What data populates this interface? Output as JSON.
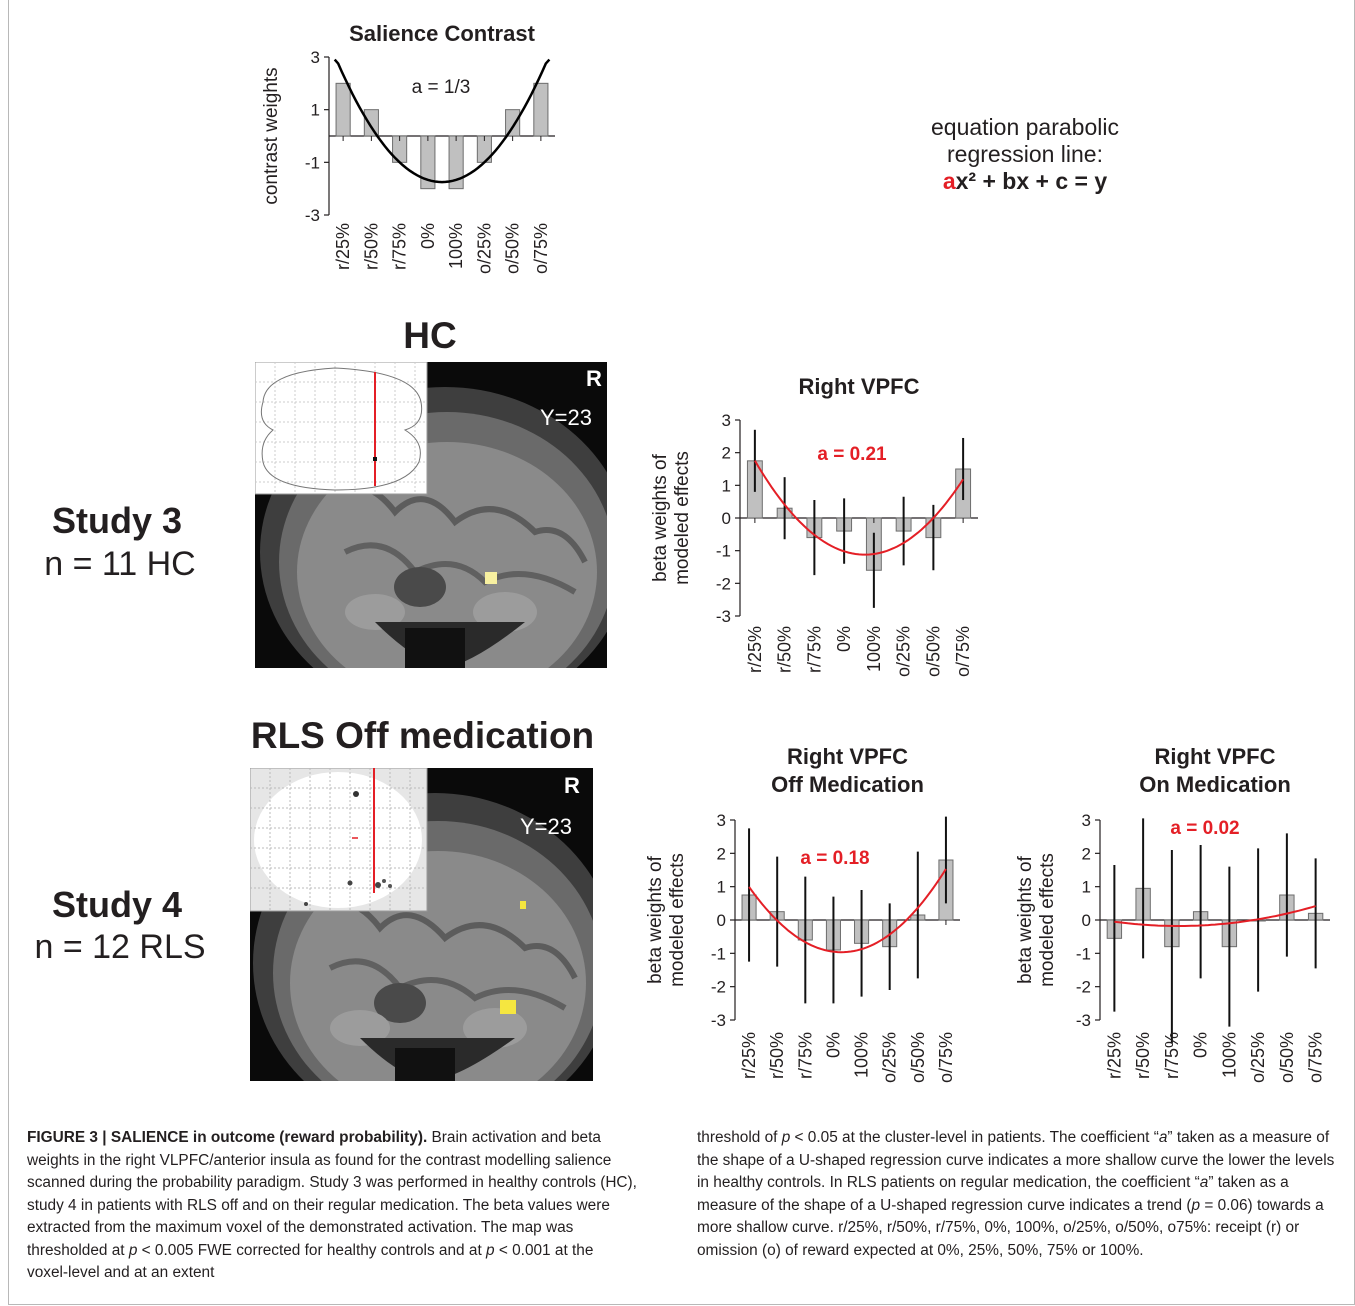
{
  "equation": {
    "line1": "equation parabolic",
    "line2": "regression line:",
    "a": "a",
    "rest": "x² + bx + c = y"
  },
  "studies": [
    {
      "title": "Study 3",
      "subtitle": "n = 11 HC",
      "map_title": "HC",
      "slice_label": "Y=23",
      "side_label": "R"
    },
    {
      "title": "Study 4",
      "subtitle": "n = 12 RLS",
      "map_title": "RLS Off medication",
      "slice_label": "Y=23",
      "side_label": "R"
    }
  ],
  "caption": {
    "figure_label": "FIGURE 3 | SALIENCE in outcome (reward probability).",
    "left_text": " Brain activation and beta weights in the right VLPFC/anterior insula as found for the contrast modelling salience scanned during the probability paradigm. Study 3 was performed in healthy controls (HC), study 4 in patients with RLS off and on their regular medication. The beta values were extracted from the maximum voxel of the demonstrated activation. The map was thresholded at ",
    "left_p1": "p",
    "left_mid": " < 0.005 FWE corrected for healthy controls and at ",
    "left_p2": "p",
    "left_end": " < 0.001 at the voxel-level and at an extent",
    "right_start": "threshold of ",
    "right_p1": "p",
    "right_a": " < 0.05 at the cluster-level in patients. The coefficient “",
    "right_a1": "a",
    "right_b": "” taken as a measure of the shape of a U-shaped regression curve indicates a more shallow curve the lower the levels in healthy controls. In RLS patients on regular medication, the coefficient “",
    "right_a2": "a",
    "right_c": "” taken as a measure of the shape of a U-shaped regression curve indicates a trend (",
    "right_p2": "p",
    "right_d": " = 0.06) towards a more shallow curve. r/25%, r/50%, r/75%, 0%, 100%, o/25%, o/50%, o75%: receipt (r) or omission (o) of reward expected at 0%, 25%, 50%, 75% or 100%."
  },
  "colors": {
    "curve_red": "#e41f26",
    "bar_fill": "#c0c0c0",
    "bar_edge": "#6d6d6d",
    "activation": "#f5e640"
  },
  "chart_data": [
    {
      "type": "bar",
      "title": "Salience Contrast",
      "ylabel": "contrast weights",
      "annotation": "a = 1/3",
      "categories": [
        "r/25%",
        "r/50%",
        "r/75%",
        "0%",
        "100%",
        "o/25%",
        "o/50%",
        "o/75%"
      ],
      "values": [
        2,
        1,
        -1,
        -2,
        -2,
        -1,
        1,
        2
      ],
      "yticks": [
        "3",
        "1",
        "-1",
        "-3"
      ],
      "ylim": [
        -3,
        3
      ],
      "fit_curve": "parabola, a = 1/3, black"
    },
    {
      "type": "bar",
      "title": "Right VPFC",
      "ylabel": [
        "beta weights of",
        "modeled effects"
      ],
      "annotation": "a = 0.21",
      "categories": [
        "r/25%",
        "r/50%",
        "r/75%",
        "0%",
        "100%",
        "o/25%",
        "o/50%",
        "o/75%"
      ],
      "values": [
        1.75,
        0.3,
        -0.6,
        -0.4,
        -1.6,
        -0.4,
        -0.6,
        1.5
      ],
      "error": [
        0.95,
        0.95,
        1.15,
        1.0,
        1.15,
        1.05,
        1.0,
        0.95
      ],
      "yticks": [
        "3",
        "2",
        "1",
        "0",
        "-1",
        "-2",
        "-3"
      ],
      "ylim": [
        -3,
        3
      ],
      "fit_curve": "parabola, a = 0.21, red"
    },
    {
      "type": "bar",
      "title": [
        "Right VPFC",
        "Off Medication"
      ],
      "ylabel": [
        "beta weights of",
        "modeled effects"
      ],
      "annotation": "a = 0.18",
      "categories": [
        "r/25%",
        "r/50%",
        "r/75%",
        "0%",
        "100%",
        "o/25%",
        "o/50%",
        "o/75%"
      ],
      "values": [
        0.75,
        0.25,
        -0.6,
        -0.9,
        -0.7,
        -0.8,
        0.15,
        1.8
      ],
      "error": [
        2.0,
        1.65,
        1.9,
        1.6,
        1.6,
        1.3,
        1.9,
        1.3
      ],
      "yticks": [
        "3",
        "2",
        "1",
        "0",
        "-1",
        "-2",
        "-3"
      ],
      "ylim": [
        -3,
        3
      ],
      "fit_curve": "parabola, a = 0.18, red"
    },
    {
      "type": "bar",
      "title": [
        "Right VPFC",
        "On Medication"
      ],
      "ylabel": [
        "beta weights of",
        "modeled effects"
      ],
      "annotation": "a = 0.02",
      "categories": [
        "r/25%",
        "r/50%",
        "r/75%",
        "0%",
        "100%",
        "o/25%",
        "o/50%",
        "o/75%"
      ],
      "values": [
        -0.55,
        0.95,
        -0.8,
        0.25,
        -0.8,
        0.0,
        0.75,
        0.2
      ],
      "error": [
        2.2,
        2.1,
        2.9,
        2.0,
        2.4,
        2.15,
        1.85,
        1.65
      ],
      "yticks": [
        "3",
        "2",
        "1",
        "0",
        "-1",
        "-2",
        "-3"
      ],
      "ylim": [
        -3,
        3
      ],
      "fit_curve": "parabola, a = 0.02, red"
    }
  ]
}
